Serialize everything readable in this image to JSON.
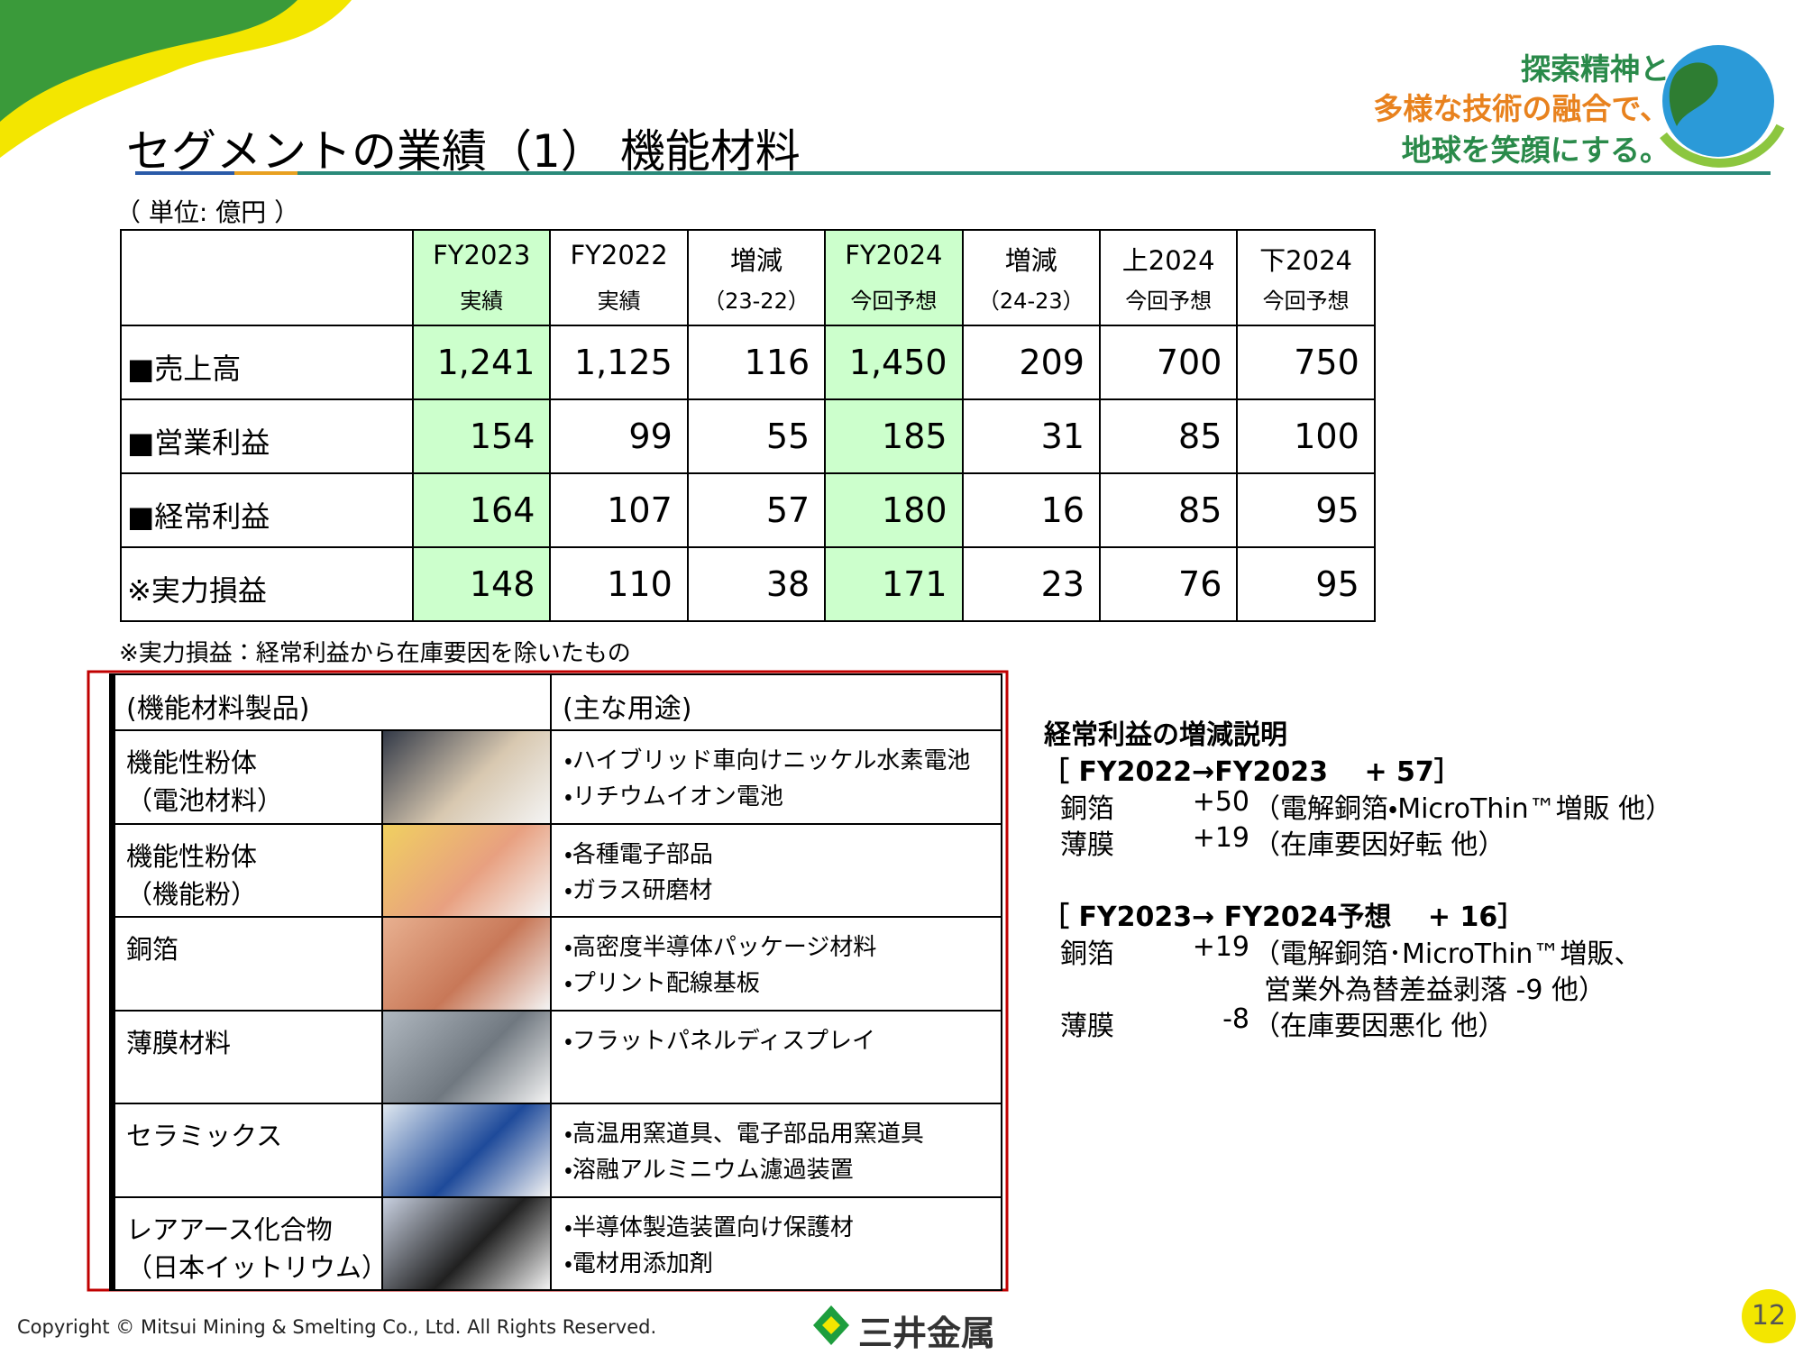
{
  "header": {
    "title": "セグメントの業績（1）  機能材料",
    "slogan": [
      "探索精神と",
      "多様な技術の融合で、",
      "地球を笑顔にする。"
    ]
  },
  "table": {
    "unit": "（ 単位: 億円 ）",
    "columns": [
      {
        "top": "FY2023",
        "sub": "実績"
      },
      {
        "top": "FY2022",
        "sub": "実績"
      },
      {
        "top": "増減",
        "sub": "（23-22）"
      },
      {
        "top": "FY2024",
        "sub": "今回予想"
      },
      {
        "top": "増減",
        "sub": "（24-23）"
      },
      {
        "top": "上2024",
        "sub": "今回予想"
      },
      {
        "top": "下2024",
        "sub": "今回予想"
      }
    ],
    "rows": [
      {
        "label": "■売上高",
        "values": [
          "1,241",
          "1,125",
          "116",
          "1,450",
          "209",
          "700",
          "750"
        ]
      },
      {
        "label": "■営業利益",
        "values": [
          "154",
          "99",
          "55",
          "185",
          "31",
          "85",
          "100"
        ]
      },
      {
        "label": "■経常利益",
        "values": [
          "164",
          "107",
          "57",
          "180",
          "16",
          "85",
          "95"
        ]
      },
      {
        "label": "※実力損益",
        "values": [
          "148",
          "110",
          "38",
          "171",
          "23",
          "76",
          "95"
        ]
      }
    ],
    "note": "※実力損益：経常利益から在庫要因を除いたもの"
  },
  "products": {
    "headers": [
      "(機能材料製品)",
      "(主な用途)"
    ],
    "rows": [
      {
        "name": [
          "機能性粉体",
          "（電池材料）"
        ],
        "uses": [
          "・ハイブリッド車向けニッケル水素電池",
          "・リチウムイオン電池"
        ]
      },
      {
        "name": [
          "機能性粉体",
          "（機能粉）"
        ],
        "uses": [
          "・各種電子部品",
          "・ガラス研磨材"
        ]
      },
      {
        "name": [
          "銅箔"
        ],
        "uses": [
          "・高密度半導体パッケージ材料",
          "・プリント配線基板"
        ]
      },
      {
        "name": [
          "薄膜材料"
        ],
        "uses": [
          "・フラットパネルディスプレイ"
        ]
      },
      {
        "name": [
          "セラミックス"
        ],
        "uses": [
          "・高温用窯道具、電子部品用窯道具",
          "・溶融アルミニウム濾過装置"
        ]
      },
      {
        "name": [
          "レアアース化合物",
          "（日本イットリウム）"
        ],
        "uses": [
          "・半導体製造装置向け保護材",
          "・電材用添加剤"
        ]
      }
    ]
  },
  "explanation": {
    "title": "経常利益の増減説明",
    "sections": [
      {
        "heading": "［ FY2022→FY2023　 + 57］",
        "lines": [
          {
            "item": "銅箔",
            "change": "+50",
            "detail": "（電解銅箔・MicroThin™増販 他）"
          },
          {
            "item": "薄膜",
            "change": "+19",
            "detail": "（在庫要因好転 他）"
          }
        ]
      },
      {
        "heading": "［ FY2023→ FY2024予想　 + 16］",
        "lines": [
          {
            "item": "銅箔",
            "change": "+19",
            "detail": "（電解銅箔･MicroThin™増販、"
          },
          {
            "detail": "営業外為替差益剥落 -9 他）"
          },
          {
            "item": "薄膜",
            "change": "-8",
            "detail": "（在庫要因悪化 他）"
          }
        ]
      }
    ]
  },
  "footer": {
    "copyright": "Copyright © Mitsui Mining & Smelting Co., Ltd. All Rights Reserved.",
    "company": "三井金属",
    "page": "12"
  }
}
